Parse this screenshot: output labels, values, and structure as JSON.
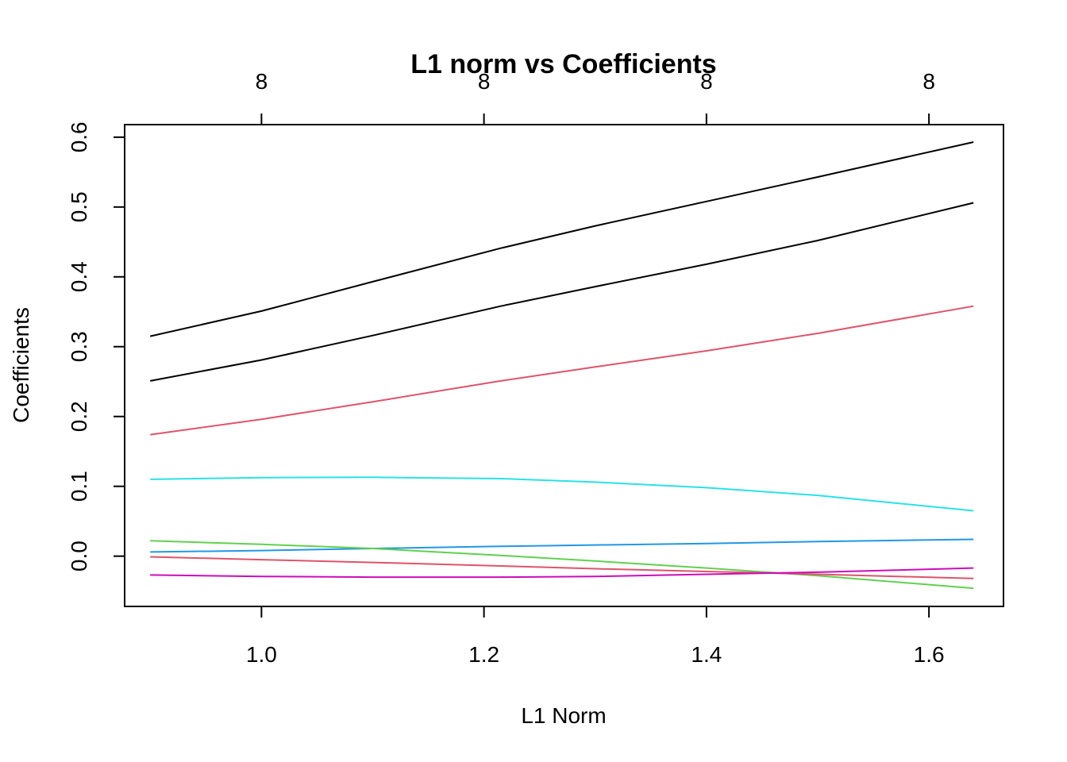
{
  "chart_data": {
    "type": "line",
    "title": "L1 norm vs Coefficients",
    "xlabel": "L1 Norm",
    "ylabel": "Coefficients",
    "xlim": [
      0.877,
      1.667
    ],
    "ylim": [
      -0.072,
      0.618
    ],
    "x_ticks": [
      1.0,
      1.2,
      1.4,
      1.6
    ],
    "x_tick_labels": [
      "1.0",
      "1.2",
      "1.4",
      "1.6"
    ],
    "y_ticks": [
      0.0,
      0.1,
      0.2,
      0.3,
      0.4,
      0.5,
      0.6
    ],
    "y_tick_labels": [
      "0.0",
      "0.1",
      "0.2",
      "0.3",
      "0.4",
      "0.5",
      "0.6"
    ],
    "top_axis": {
      "ticks": [
        1.0,
        1.2,
        1.4,
        1.6
      ],
      "labels": [
        "8",
        "8",
        "8",
        "8"
      ]
    },
    "grid": false,
    "legend": "none",
    "series": [
      {
        "color": "#000000",
        "points": [
          [
            0.9,
            0.315
          ],
          [
            1.0,
            0.351
          ],
          [
            1.1,
            0.393
          ],
          [
            1.215,
            0.441
          ],
          [
            1.3,
            0.473
          ],
          [
            1.4,
            0.508
          ],
          [
            1.5,
            0.543
          ],
          [
            1.64,
            0.593
          ]
        ]
      },
      {
        "color": "#000000",
        "points": [
          [
            0.9,
            0.251
          ],
          [
            1.0,
            0.281
          ],
          [
            1.1,
            0.316
          ],
          [
            1.215,
            0.358
          ],
          [
            1.3,
            0.386
          ],
          [
            1.4,
            0.418
          ],
          [
            1.5,
            0.452
          ],
          [
            1.64,
            0.506
          ]
        ]
      },
      {
        "color": "#DF536B",
        "points": [
          [
            0.9,
            0.174
          ],
          [
            1.0,
            0.196
          ],
          [
            1.1,
            0.221
          ],
          [
            1.215,
            0.251
          ],
          [
            1.3,
            0.271
          ],
          [
            1.4,
            0.294
          ],
          [
            1.5,
            0.319
          ],
          [
            1.64,
            0.358
          ]
        ]
      },
      {
        "color": "#28E2E5",
        "points": [
          [
            0.9,
            0.11
          ],
          [
            1.0,
            0.1125
          ],
          [
            1.1,
            0.113
          ],
          [
            1.215,
            0.111
          ],
          [
            1.3,
            0.106
          ],
          [
            1.4,
            0.098
          ],
          [
            1.5,
            0.087
          ],
          [
            1.64,
            0.065
          ]
        ]
      },
      {
        "color": "#2297E6",
        "points": [
          [
            0.9,
            0.006
          ],
          [
            1.0,
            0.008
          ],
          [
            1.1,
            0.011
          ],
          [
            1.215,
            0.014
          ],
          [
            1.3,
            0.016
          ],
          [
            1.4,
            0.018
          ],
          [
            1.5,
            0.021
          ],
          [
            1.64,
            0.024
          ]
        ]
      },
      {
        "color": "#61D04F",
        "points": [
          [
            0.9,
            0.022
          ],
          [
            1.0,
            0.017
          ],
          [
            1.1,
            0.011
          ],
          [
            1.215,
            0.001
          ],
          [
            1.3,
            -0.007
          ],
          [
            1.4,
            -0.017
          ],
          [
            1.5,
            -0.028
          ],
          [
            1.64,
            -0.046
          ]
        ]
      },
      {
        "color": "#DF536B",
        "points": [
          [
            0.9,
            -0.001
          ],
          [
            1.0,
            -0.005
          ],
          [
            1.1,
            -0.009
          ],
          [
            1.215,
            -0.014
          ],
          [
            1.3,
            -0.018
          ],
          [
            1.4,
            -0.022
          ],
          [
            1.5,
            -0.026
          ],
          [
            1.64,
            -0.032
          ]
        ]
      },
      {
        "color": "#CD0BBC",
        "points": [
          [
            0.9,
            -0.027
          ],
          [
            1.0,
            -0.029
          ],
          [
            1.1,
            -0.03
          ],
          [
            1.215,
            -0.03
          ],
          [
            1.3,
            -0.029
          ],
          [
            1.4,
            -0.026
          ],
          [
            1.5,
            -0.023
          ],
          [
            1.64,
            -0.017
          ]
        ]
      }
    ]
  }
}
